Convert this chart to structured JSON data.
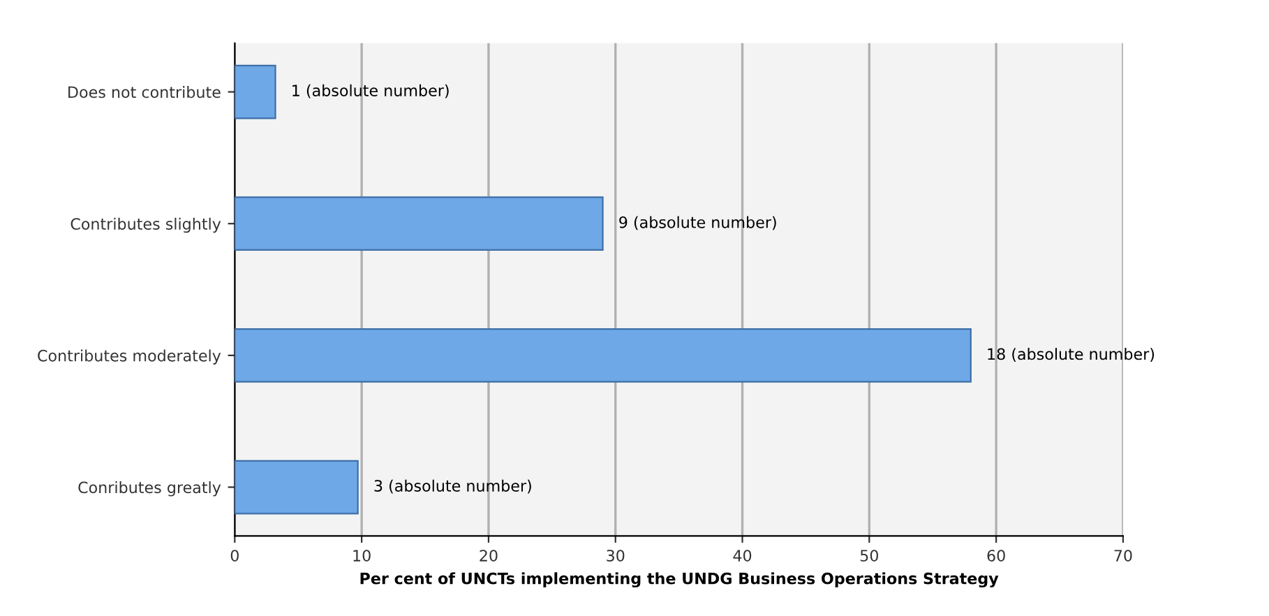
{
  "chart_data": {
    "type": "bar",
    "orientation": "horizontal",
    "xlabel": "Per cent of UNCTs implementing the UNDG Business Operations Strategy",
    "categories": [
      "Does not contribute",
      "Contributes slightly",
      "Contributes moderately",
      "Conributes greatly"
    ],
    "values": [
      3.2,
      29,
      58,
      9.7
    ],
    "color": "#6fa8e6",
    "annotations": [
      {
        "text": "1 (absolute number)",
        "x": 3.2,
        "y": "Does not contribute"
      },
      {
        "text": "9 (absolute number)",
        "x": 29,
        "y": "Contributes slightly"
      },
      {
        "text": "18 (absolute number)",
        "x": 58,
        "y": "Contributes moderately"
      },
      {
        "text": "3 (absolute number)",
        "x": 9.7,
        "y": "Conributes greatly"
      }
    ],
    "xlim": [
      0,
      70
    ],
    "xticks": [
      0,
      10,
      20,
      30,
      40,
      50,
      60,
      70
    ],
    "grid": "x"
  }
}
